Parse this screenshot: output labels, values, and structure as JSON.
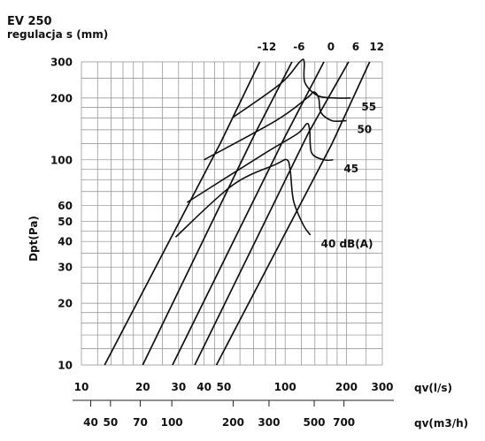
{
  "chart_data": {
    "type": "line",
    "title": "EV 250",
    "subtitle": "regulacja s (mm)",
    "ylabel": "Dpt(Pa)",
    "xlabel": "qv(l/s)",
    "x2label": "qv(m3/h)",
    "xscale": "log",
    "yscale": "log",
    "xlim": [
      10,
      300
    ],
    "ylim": [
      10,
      300
    ],
    "grid": true,
    "x_ticks": [
      "10",
      "20",
      "30",
      "40",
      "50",
      "100",
      "200",
      "300"
    ],
    "y_ticks": [
      "10",
      "20",
      "30",
      "40",
      "50",
      "60",
      "100",
      "200",
      "300"
    ],
    "x2_ticks": [
      "40",
      "50",
      "70",
      "100",
      "200",
      "300",
      "500",
      "700"
    ],
    "x2_tick_values_l_s": [
      11.11,
      13.89,
      19.44,
      27.78,
      55.56,
      83.33,
      138.89,
      194.44
    ],
    "setting_lines": [
      {
        "label": "-12",
        "points": [
          [
            13,
            10
          ],
          [
            48,
            120
          ],
          [
            75,
            300
          ]
        ]
      },
      {
        "label": "-6",
        "points": [
          [
            20,
            10
          ],
          [
            70,
            130
          ],
          [
            108,
            300
          ]
        ]
      },
      {
        "label": "0",
        "points": [
          [
            28,
            10
          ],
          [
            100,
            130
          ],
          [
            155,
            300
          ]
        ]
      },
      {
        "label": "6",
        "points": [
          [
            36,
            10
          ],
          [
            130,
            135
          ],
          [
            205,
            300
          ]
        ]
      },
      {
        "label": "12",
        "points": [
          [
            46,
            10
          ],
          [
            170,
            120
          ],
          [
            260,
            300
          ]
        ]
      }
    ],
    "noise_curves": [
      {
        "label": "40 dB(A)",
        "points": [
          [
            29,
            42
          ],
          [
            55,
            75
          ],
          [
            90,
            95
          ],
          [
            102,
            100
          ],
          [
            106,
            88
          ],
          [
            110,
            63
          ],
          [
            123,
            48
          ],
          [
            133,
            43
          ]
        ]
      },
      {
        "label": "45",
        "points": [
          [
            33,
            62
          ],
          [
            80,
            108
          ],
          [
            115,
            134
          ],
          [
            128,
            150
          ],
          [
            132,
            138
          ],
          [
            135,
            108
          ],
          [
            155,
            100
          ],
          [
            172,
            100
          ]
        ]
      },
      {
        "label": "50",
        "points": [
          [
            40,
            100
          ],
          [
            90,
            155
          ],
          [
            128,
            200
          ],
          [
            138,
            214
          ],
          [
            146,
            200
          ],
          [
            150,
            170
          ],
          [
            170,
            155
          ],
          [
            200,
            155
          ]
        ]
      },
      {
        "label": "55",
        "points": [
          [
            55,
            160
          ],
          [
            95,
            235
          ],
          [
            118,
            300
          ],
          [
            124,
            300
          ],
          [
            125,
            238
          ],
          [
            145,
            205
          ],
          [
            178,
            200
          ],
          [
            210,
            200
          ]
        ]
      }
    ]
  }
}
